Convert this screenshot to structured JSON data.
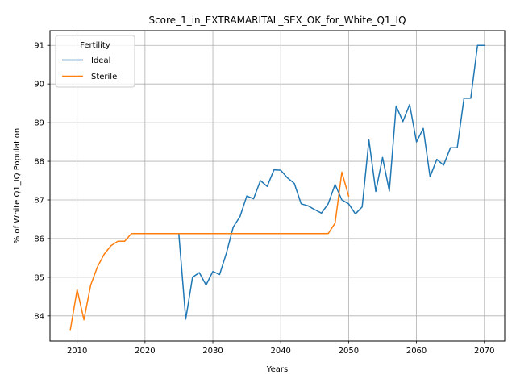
{
  "chart_data": {
    "type": "line",
    "title": "Score_1_in_EXTRAMARITAL_SEX_OK_for_White_Q1_IQ",
    "xlabel": "Years",
    "ylabel": "% of White Q1_IQ Population",
    "xlim": [
      2006,
      2073
    ],
    "ylim": [
      83.35,
      91.38
    ],
    "xticks": [
      2010,
      2020,
      2030,
      2040,
      2050,
      2060,
      2070
    ],
    "yticks": [
      84,
      85,
      86,
      87,
      88,
      89,
      90,
      91
    ],
    "grid": true,
    "legend": {
      "title": "Fertility",
      "placement": "upper-left"
    },
    "series": [
      {
        "name": "Ideal",
        "color": "#1f77b4",
        "x": [
          2025,
          2026,
          2027,
          2028,
          2029,
          2030,
          2031,
          2032,
          2033,
          2034,
          2035,
          2036,
          2037,
          2038,
          2039,
          2040,
          2041,
          2042,
          2043,
          2044,
          2045,
          2046,
          2047,
          2048,
          2049,
          2050,
          2051,
          2052,
          2053,
          2054,
          2055,
          2056,
          2057,
          2058,
          2059,
          2060,
          2061,
          2062,
          2063,
          2064,
          2065,
          2066,
          2067,
          2068,
          2069,
          2070
        ],
        "y": [
          86.1,
          83.92,
          85.0,
          85.12,
          84.8,
          85.15,
          85.07,
          85.63,
          86.3,
          86.57,
          87.1,
          87.03,
          87.5,
          87.35,
          87.78,
          87.77,
          87.57,
          87.43,
          86.9,
          86.85,
          86.75,
          86.66,
          86.9,
          87.4,
          87.0,
          86.9,
          86.64,
          86.82,
          88.55,
          87.22,
          88.1,
          87.23,
          89.43,
          89.03,
          89.47,
          88.5,
          88.85,
          87.6,
          88.05,
          87.9,
          88.35,
          88.35,
          89.63,
          89.63,
          91.0,
          91.0
        ]
      },
      {
        "name": "Sterile",
        "color": "#ff7f0e",
        "x": [
          2009,
          2010,
          2011,
          2012,
          2013,
          2014,
          2015,
          2016,
          2017,
          2018,
          2019,
          2020,
          2021,
          2022,
          2023,
          2024,
          2025,
          2026,
          2027,
          2028,
          2029,
          2030,
          2031,
          2032,
          2033,
          2034,
          2035,
          2036,
          2037,
          2038,
          2039,
          2040,
          2041,
          2042,
          2043,
          2044,
          2045,
          2046,
          2047,
          2048,
          2049,
          2050
        ],
        "y": [
          83.65,
          84.68,
          83.9,
          84.8,
          85.27,
          85.6,
          85.82,
          85.93,
          85.93,
          86.13,
          86.13,
          86.13,
          86.13,
          86.13,
          86.13,
          86.13,
          86.13,
          86.13,
          86.13,
          86.13,
          86.13,
          86.13,
          86.13,
          86.13,
          86.13,
          86.13,
          86.13,
          86.13,
          86.13,
          86.13,
          86.13,
          86.13,
          86.13,
          86.13,
          86.13,
          86.13,
          86.13,
          86.13,
          86.13,
          86.4,
          87.72,
          87.1
        ]
      }
    ]
  }
}
